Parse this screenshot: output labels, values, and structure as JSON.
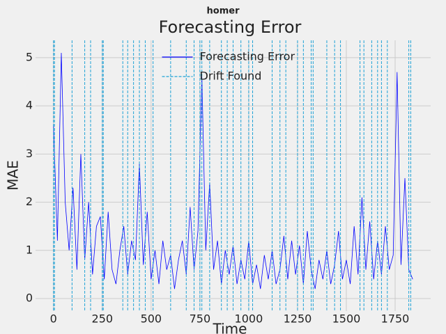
{
  "chart_data": {
    "type": "line",
    "suptitle": "homer",
    "title": "Forecasting Error",
    "x_label": "Time",
    "y_label": "MAE",
    "series": [
      {
        "name": "Forecasting Error",
        "color": "#0000ff",
        "x": [
          0,
          20,
          40,
          60,
          80,
          100,
          120,
          140,
          160,
          180,
          200,
          220,
          240,
          260,
          280,
          300,
          320,
          340,
          360,
          380,
          400,
          420,
          440,
          460,
          480,
          500,
          520,
          540,
          560,
          580,
          600,
          620,
          640,
          660,
          680,
          700,
          720,
          740,
          760,
          780,
          800,
          820,
          840,
          860,
          880,
          900,
          920,
          940,
          960,
          980,
          1000,
          1020,
          1040,
          1060,
          1080,
          1100,
          1120,
          1140,
          1160,
          1180,
          1200,
          1220,
          1240,
          1260,
          1280,
          1300,
          1320,
          1340,
          1360,
          1380,
          1400,
          1420,
          1440,
          1460,
          1480,
          1500,
          1520,
          1540,
          1560,
          1580,
          1600,
          1620,
          1640,
          1660,
          1680,
          1700,
          1720,
          1740,
          1760,
          1780,
          1800,
          1820,
          1840
        ],
        "values": [
          3.6,
          1.2,
          5.1,
          2.0,
          1.0,
          2.3,
          0.6,
          3.0,
          0.8,
          2.0,
          0.5,
          1.5,
          1.7,
          0.4,
          1.8,
          0.6,
          0.3,
          1.0,
          1.5,
          0.5,
          1.2,
          0.8,
          2.8,
          0.7,
          1.8,
          0.4,
          1.0,
          0.3,
          1.2,
          0.6,
          0.9,
          0.2,
          0.8,
          1.2,
          0.5,
          1.9,
          0.6,
          1.4,
          4.6,
          1.0,
          2.4,
          0.6,
          1.2,
          0.3,
          1.0,
          0.5,
          1.1,
          0.3,
          0.8,
          0.4,
          1.2,
          0.3,
          0.7,
          0.2,
          0.9,
          0.4,
          1.0,
          0.3,
          0.6,
          1.3,
          0.4,
          1.2,
          0.5,
          1.1,
          0.3,
          1.4,
          0.6,
          0.2,
          0.8,
          0.4,
          1.0,
          0.3,
          0.7,
          1.4,
          0.4,
          0.8,
          0.3,
          1.5,
          0.5,
          2.1,
          0.6,
          1.6,
          0.4,
          1.2,
          0.5,
          1.5,
          0.6,
          0.9,
          4.7,
          0.7,
          2.5,
          0.6,
          0.4
        ]
      },
      {
        "name": "Drift Found",
        "color": "#1fa2d6",
        "dashed": true,
        "x": [
          0,
          5,
          95,
          160,
          190,
          250,
          255,
          355,
          380,
          410,
          440,
          470,
          510,
          600,
          680,
          720,
          750,
          760,
          800,
          860,
          890,
          920,
          960,
          1000,
          1020,
          1120,
          1160,
          1190,
          1250,
          1280,
          1320,
          1330,
          1400,
          1440,
          1470,
          1570,
          1590,
          1630,
          1660,
          1680,
          1710,
          1820,
          1830
        ]
      }
    ],
    "xlim": [
      -92,
      1932
    ],
    "ylim": [
      -0.26,
      5.36
    ],
    "xticks": [
      0,
      250,
      500,
      750,
      1000,
      1250,
      1500,
      1750
    ],
    "yticks": [
      0,
      1,
      2,
      3,
      4,
      5
    ],
    "grid": true,
    "legend": "upper center"
  }
}
